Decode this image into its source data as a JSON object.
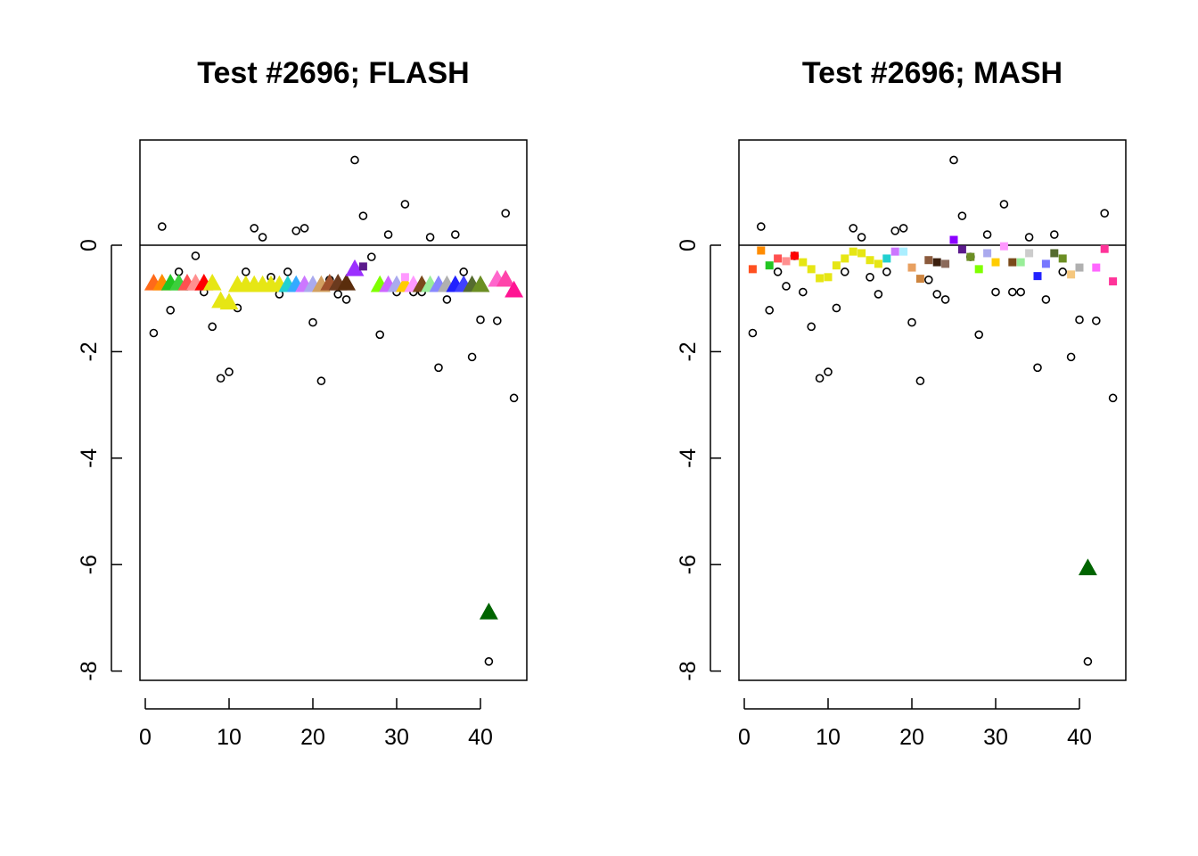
{
  "chart_data": [
    {
      "type": "scatter",
      "title": "Test #2696; FLASH",
      "xlabel": "",
      "ylabel": "",
      "xlim": [
        0,
        45
      ],
      "ylim": [
        -8,
        2
      ],
      "x_ticks": [
        0,
        10,
        20,
        30,
        40
      ],
      "y_ticks": [
        0,
        -2,
        -4,
        -6,
        -8
      ],
      "y_tick_labels": [
        "0",
        "-2",
        "-4",
        "-6",
        "-8"
      ],
      "reference_line_y": 0,
      "series": [
        {
          "marker": "open-circle",
          "color": "#000000",
          "x": [
            1,
            2,
            3,
            4,
            5,
            6,
            7,
            8,
            9,
            10,
            11,
            12,
            13,
            14,
            15,
            16,
            17,
            18,
            19,
            20,
            21,
            22,
            23,
            24,
            25,
            26,
            27,
            28,
            29,
            30,
            31,
            32,
            33,
            34,
            35,
            36,
            37,
            38,
            39,
            40,
            41,
            42,
            43,
            44
          ],
          "y": [
            -1.65,
            0.35,
            -1.22,
            -0.5,
            -0.77,
            -0.2,
            -0.88,
            -1.53,
            -2.5,
            -2.38,
            -1.18,
            -0.5,
            0.32,
            0.15,
            -0.6,
            -0.92,
            -0.5,
            0.27,
            0.32,
            -1.45,
            -2.55,
            -0.65,
            -0.92,
            -1.02,
            1.6,
            0.55,
            -0.22,
            -1.68,
            0.2,
            -0.88,
            0.77,
            -0.88,
            -0.88,
            0.15,
            -2.3,
            -1.02,
            0.2,
            -0.5,
            -2.1,
            -1.4,
            -7.82,
            -1.42,
            0.6,
            -2.87
          ]
        },
        {
          "marker": "filled-triangle",
          "x": [
            1,
            2,
            3,
            4,
            5,
            6,
            7,
            8,
            9,
            10,
            11,
            12,
            13,
            14,
            15,
            16,
            17,
            18,
            19,
            20,
            21,
            22,
            23,
            24,
            25,
            28,
            29,
            30,
            31,
            32,
            33,
            34,
            35,
            36,
            37,
            38,
            39,
            40,
            41,
            42,
            43,
            44
          ],
          "y": [
            -0.72,
            -0.72,
            -0.72,
            -0.72,
            -0.72,
            -0.72,
            -0.72,
            -0.72,
            -1.05,
            -1.08,
            -0.75,
            -0.75,
            -0.75,
            -0.75,
            -0.75,
            -0.75,
            -0.75,
            -0.75,
            -0.75,
            -0.75,
            -0.75,
            -0.72,
            -0.72,
            -0.72,
            -0.45,
            -0.75,
            -0.75,
            -0.75,
            -0.75,
            -0.75,
            -0.75,
            -0.75,
            -0.75,
            -0.75,
            -0.75,
            -0.75,
            -0.75,
            -0.75,
            -6.9,
            -0.65,
            -0.65,
            -0.85
          ],
          "colors": [
            "#ff6a1a",
            "#ff8c00",
            "#22c522",
            "#3ccf3c",
            "#ff5050",
            "#ff9090",
            "#ff0000",
            "#e6e614",
            "#e6e614",
            "#e6e614",
            "#e6e614",
            "#e6e614",
            "#e6e614",
            "#e6e614",
            "#e6e614",
            "#e6e614",
            "#22d0d0",
            "#33aaff",
            "#cc77ff",
            "#aaaaee",
            "#d2a060",
            "#a0522d",
            "#6b3a1e",
            "#5a2d0c",
            "#9b30ff",
            "#7fff00",
            "#cc66ff",
            "#aaaaee",
            "#ffcc00",
            "#ff99ff",
            "#7a4a1a",
            "#99ee99",
            "#8888ff",
            "#b0b0b0",
            "#2222ff",
            "#4040ff",
            "#556b2f",
            "#6b8e23",
            "#006400",
            "#ff66cc",
            "#ff44aa",
            "#ff1493"
          ],
          "sizes": [
            "large",
            "large",
            "large",
            "large",
            "large",
            "large",
            "large",
            "large",
            "large",
            "large",
            "large",
            "large",
            "large",
            "large",
            "large",
            "large",
            "large",
            "large",
            "large",
            "large",
            "large",
            "large",
            "large",
            "large",
            "large",
            "large",
            "large",
            "large",
            "large",
            "large",
            "large",
            "large",
            "large",
            "large",
            "large",
            "large",
            "large",
            "large",
            "large",
            "large",
            "large",
            "large"
          ]
        },
        {
          "marker": "filled-square",
          "x": [
            26,
            31
          ],
          "y": [
            -0.4,
            -0.6
          ],
          "colors": [
            "#5b1a8c",
            "#ff99ff"
          ]
        }
      ]
    },
    {
      "type": "scatter",
      "title": "Test #2696; MASH",
      "xlabel": "",
      "ylabel": "",
      "xlim": [
        0,
        45
      ],
      "ylim": [
        -8,
        2
      ],
      "x_ticks": [
        0,
        10,
        20,
        30,
        40
      ],
      "y_ticks": [
        0,
        -2,
        -4,
        -6,
        -8
      ],
      "y_tick_labels": [
        "0",
        "-2",
        "-4",
        "-6",
        "-8"
      ],
      "reference_line_y": 0,
      "series": [
        {
          "marker": "open-circle",
          "color": "#000000",
          "x": [
            1,
            2,
            3,
            4,
            5,
            6,
            7,
            8,
            9,
            10,
            11,
            12,
            13,
            14,
            15,
            16,
            17,
            18,
            19,
            20,
            21,
            22,
            23,
            24,
            25,
            26,
            27,
            28,
            29,
            30,
            31,
            32,
            33,
            34,
            35,
            36,
            37,
            38,
            39,
            40,
            41,
            42,
            43,
            44
          ],
          "y": [
            -1.65,
            0.35,
            -1.22,
            -0.5,
            -0.77,
            -0.2,
            -0.88,
            -1.53,
            -2.5,
            -2.38,
            -1.18,
            -0.5,
            0.32,
            0.15,
            -0.6,
            -0.92,
            -0.5,
            0.27,
            0.32,
            -1.45,
            -2.55,
            -0.65,
            -0.92,
            -1.02,
            1.6,
            0.55,
            -0.22,
            -1.68,
            0.2,
            -0.88,
            0.77,
            -0.88,
            -0.88,
            0.15,
            -2.3,
            -1.02,
            0.2,
            -0.5,
            -2.1,
            -1.4,
            -7.82,
            -1.42,
            0.6,
            -2.87
          ]
        },
        {
          "marker": "filled-square",
          "x": [
            1,
            2,
            3,
            4,
            5,
            6,
            7,
            8,
            9,
            10,
            11,
            12,
            13,
            14,
            15,
            16,
            17,
            18,
            19,
            20,
            21,
            22,
            23,
            24,
            25,
            26,
            27,
            28,
            29,
            30,
            31,
            32,
            33,
            34,
            35,
            36,
            37,
            38,
            39,
            40,
            42,
            43,
            44
          ],
          "y": [
            -0.45,
            -0.1,
            -0.38,
            -0.25,
            -0.3,
            -0.2,
            -0.32,
            -0.45,
            -0.62,
            -0.6,
            -0.38,
            -0.25,
            -0.12,
            -0.15,
            -0.28,
            -0.35,
            -0.25,
            -0.12,
            -0.12,
            -0.42,
            -0.63,
            -0.28,
            -0.32,
            -0.35,
            0.1,
            -0.08,
            -0.22,
            -0.45,
            -0.15,
            -0.32,
            -0.02,
            -0.32,
            -0.32,
            -0.15,
            -0.58,
            -0.35,
            -0.15,
            -0.25,
            -0.55,
            -0.42,
            -0.42,
            -0.07,
            -0.68
          ],
          "colors": [
            "#ff5020",
            "#ff8c00",
            "#22c522",
            "#ff5050",
            "#ff9090",
            "#ff0000",
            "#e6e614",
            "#e6e614",
            "#e6e614",
            "#e6e614",
            "#e6e614",
            "#e6e614",
            "#e6e614",
            "#e6e614",
            "#e6e614",
            "#e6e614",
            "#22d0d0",
            "#cc77ff",
            "#aaeeff",
            "#e8a060",
            "#cd853f",
            "#8b5a3c",
            "#3b1f0e",
            "#8b6a5a",
            "#8b00ff",
            "#5b1a8c",
            "#6b8e23",
            "#7fff00",
            "#aaaaee",
            "#ffcc00",
            "#ff99ff",
            "#7a4a1a",
            "#99ee99",
            "#cccccc",
            "#2222ff",
            "#7777ff",
            "#556b2f",
            "#6b8e23",
            "#f5c77e",
            "#b0b0b0",
            "#ff66ff",
            "#ff3399",
            "#ff3399"
          ]
        },
        {
          "marker": "filled-triangle",
          "x": [
            41
          ],
          "y": [
            -6.07
          ],
          "colors": [
            "#006400"
          ]
        }
      ]
    }
  ]
}
